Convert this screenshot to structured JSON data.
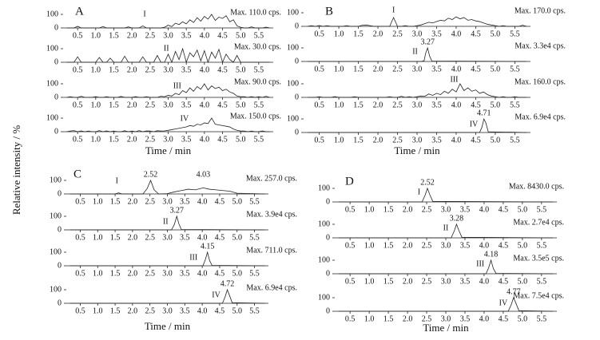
{
  "figure": {
    "ylabel": "Relative intensity / %"
  },
  "chart_data": [
    {
      "type": "line",
      "label": "A",
      "xlabel": "Time / min",
      "xlim": [
        0.1,
        5.9
      ],
      "ylim": [
        0,
        120
      ],
      "yticks": [
        0,
        100
      ],
      "xticks": [
        0.5,
        {
          "value": 1,
          "label": "1.0"
        },
        1.5,
        {
          "value": 2,
          "label": "2.0"
        },
        2.5,
        {
          "value": 3,
          "label": "3.0"
        },
        3.5,
        {
          "value": 4,
          "label": "4.0"
        },
        4.5,
        {
          "value": 5,
          "label": "5.0"
        },
        5.5
      ],
      "x": [
        0.2,
        0.3,
        0.4,
        0.5,
        0.6,
        0.7,
        0.8,
        0.9,
        1.0,
        1.1,
        1.2,
        1.3,
        1.4,
        1.5,
        1.6,
        1.7,
        1.8,
        1.9,
        2.0,
        2.1,
        2.2,
        2.3,
        2.4,
        2.5,
        2.6,
        2.7,
        2.8,
        2.9,
        3.0,
        3.1,
        3.2,
        3.3,
        3.4,
        3.5,
        3.6,
        3.7,
        3.8,
        3.9,
        4.0,
        4.1,
        4.2,
        4.3,
        4.4,
        4.5,
        4.6,
        4.7,
        4.8,
        4.9,
        5.0,
        5.1,
        5.2,
        5.3,
        5.4,
        5.5,
        5.6,
        5.7,
        5.8
      ],
      "series": [
        {
          "name": "I",
          "max_label": "Max. 110.0 cps.",
          "values": [
            0,
            0,
            0,
            12,
            0,
            0,
            0,
            0,
            0,
            0,
            10,
            0,
            0,
            0,
            0,
            0,
            0,
            8,
            0,
            0,
            0,
            15,
            0,
            0,
            0,
            0,
            0,
            5,
            20,
            10,
            35,
            25,
            45,
            30,
            60,
            40,
            75,
            50,
            85,
            65,
            100,
            55,
            80,
            70,
            90,
            45,
            60,
            15,
            5,
            0,
            0,
            8,
            0,
            0,
            0,
            6,
            0
          ]
        },
        {
          "name": "II",
          "max_label": "Max. 30.0 cps.",
          "values": [
            0,
            0,
            0,
            40,
            0,
            0,
            0,
            0,
            0,
            35,
            0,
            0,
            30,
            0,
            0,
            0,
            45,
            0,
            0,
            0,
            0,
            40,
            0,
            0,
            0,
            50,
            0,
            0,
            60,
            0,
            80,
            20,
            100,
            0,
            70,
            40,
            90,
            10,
            85,
            0,
            75,
            30,
            95,
            0,
            60,
            20,
            0,
            50,
            0,
            0,
            0,
            0,
            0,
            0,
            0,
            0,
            0
          ]
        },
        {
          "name": "III",
          "max_label": "Max. 90.0 cps.",
          "values": [
            0,
            5,
            0,
            0,
            8,
            0,
            0,
            0,
            6,
            0,
            0,
            5,
            0,
            0,
            0,
            7,
            0,
            0,
            0,
            6,
            0,
            0,
            5,
            0,
            0,
            0,
            8,
            5,
            15,
            10,
            30,
            20,
            50,
            35,
            70,
            45,
            80,
            60,
            100,
            55,
            85,
            65,
            75,
            50,
            60,
            40,
            30,
            10,
            5,
            5,
            0,
            6,
            0,
            5,
            0,
            8,
            0
          ]
        },
        {
          "name": "IV",
          "max_label": "Max. 150.0 cps.",
          "values": [
            0,
            5,
            8,
            0,
            6,
            0,
            5,
            0,
            0,
            8,
            0,
            6,
            0,
            5,
            0,
            0,
            7,
            0,
            5,
            0,
            8,
            0,
            6,
            5,
            0,
            7,
            5,
            6,
            10,
            15,
            20,
            25,
            30,
            35,
            45,
            40,
            55,
            50,
            65,
            60,
            100,
            55,
            50,
            45,
            40,
            35,
            20,
            10,
            5,
            5,
            0,
            5,
            0,
            0,
            6,
            0,
            0
          ]
        }
      ]
    },
    {
      "type": "line",
      "label": "B",
      "xlabel": "Time / min",
      "xlim": [
        0.1,
        5.9
      ],
      "ylim": [
        0,
        120
      ],
      "yticks": [
        0,
        100
      ],
      "xticks": [
        0.5,
        {
          "value": 1,
          "label": "1.0"
        },
        1.5,
        {
          "value": 2,
          "label": "2.0"
        },
        2.5,
        {
          "value": 3,
          "label": "3.0"
        },
        3.5,
        {
          "value": 4,
          "label": "4.0"
        },
        4.5,
        {
          "value": 5,
          "label": "5.0"
        },
        5.5
      ],
      "x": [
        0.2,
        0.3,
        0.4,
        0.5,
        0.6,
        0.7,
        0.8,
        0.9,
        1.0,
        1.1,
        1.2,
        1.3,
        1.4,
        1.5,
        1.6,
        1.7,
        1.8,
        1.9,
        2.0,
        2.1,
        2.2,
        2.3,
        2.4,
        2.5,
        2.6,
        2.7,
        2.8,
        2.9,
        3.0,
        3.1,
        3.2,
        3.3,
        3.4,
        3.5,
        3.6,
        3.7,
        3.8,
        3.9,
        4.0,
        4.1,
        4.2,
        4.3,
        4.4,
        4.5,
        4.6,
        4.7,
        4.8,
        4.9,
        5.0,
        5.1,
        5.2,
        5.3,
        5.4,
        5.5,
        5.6,
        5.7,
        5.8
      ],
      "series": [
        {
          "name": "I",
          "max_label": "Max. 170.0 cps.",
          "values": [
            0,
            5,
            0,
            6,
            0,
            5,
            0,
            0,
            0,
            0,
            5,
            0,
            0,
            0,
            8,
            10,
            5,
            0,
            0,
            0,
            0,
            0,
            65,
            0,
            0,
            5,
            0,
            0,
            5,
            10,
            20,
            30,
            25,
            35,
            45,
            40,
            60,
            50,
            70,
            55,
            65,
            45,
            50,
            40,
            35,
            25,
            15,
            10,
            5,
            0,
            5,
            0,
            0,
            0,
            0,
            8,
            0
          ]
        },
        {
          "name": "II",
          "max_label": "Max. 3.3e4 cps.",
          "peaks": [
            3.27
          ],
          "x": [
            0.2,
            3.1,
            3.18,
            3.22,
            3.27,
            3.32,
            3.38,
            5.8
          ],
          "values": [
            0,
            0,
            5,
            60,
            100,
            40,
            3,
            0
          ]
        },
        {
          "name": "III",
          "max_label": "Max. 160.0 cps.",
          "values": [
            0,
            0,
            0,
            5,
            0,
            0,
            0,
            6,
            0,
            0,
            0,
            0,
            5,
            0,
            0,
            0,
            0,
            0,
            0,
            0,
            0,
            5,
            0,
            0,
            8,
            0,
            5,
            0,
            5,
            10,
            8,
            25,
            15,
            30,
            20,
            45,
            30,
            60,
            40,
            100,
            50,
            70,
            45,
            55,
            30,
            40,
            20,
            10,
            5,
            0,
            5,
            0,
            0,
            5,
            0,
            0,
            0
          ]
        },
        {
          "name": "IV",
          "max_label": "Max. 6.9e4 cps.",
          "peaks": [
            4.71
          ],
          "x": [
            0.2,
            4.6,
            4.66,
            4.71,
            4.76,
            4.82,
            5.8
          ],
          "values": [
            0,
            0,
            40,
            100,
            70,
            5,
            0
          ]
        }
      ]
    },
    {
      "type": "line",
      "label": "C",
      "xlabel": "Time / min",
      "xlim": [
        0.1,
        5.9
      ],
      "ylim": [
        0,
        120
      ],
      "yticks": [
        0,
        100
      ],
      "xticks": [
        0.5,
        {
          "value": 1,
          "label": "1.0"
        },
        1.5,
        {
          "value": 2,
          "label": "2.0"
        },
        2.5,
        {
          "value": 3,
          "label": "3.0"
        },
        3.5,
        {
          "value": 4,
          "label": "4.0"
        },
        4.5,
        {
          "value": 5,
          "label": "5.0"
        },
        5.5
      ],
      "series": [
        {
          "name": "I",
          "max_label": "Max. 257.0 cps.",
          "peaks": [
            2.52,
            4.03
          ],
          "x": [
            0.2,
            1.5,
            1.6,
            1.7,
            2.3,
            2.42,
            2.52,
            2.62,
            2.75,
            3.0,
            3.2,
            3.4,
            3.6,
            3.8,
            4.03,
            4.2,
            4.4,
            4.6,
            4.8,
            5.0,
            5.8
          ],
          "values": [
            0,
            0,
            8,
            0,
            0,
            40,
            100,
            30,
            0,
            2,
            15,
            25,
            35,
            30,
            45,
            35,
            30,
            25,
            20,
            5,
            0
          ]
        },
        {
          "name": "II",
          "max_label": "Max. 3.9e4 cps.",
          "peaks": [
            3.27
          ],
          "x": [
            0.2,
            3.12,
            3.2,
            3.27,
            3.33,
            3.4,
            5.8
          ],
          "values": [
            0,
            0,
            40,
            100,
            45,
            3,
            0
          ]
        },
        {
          "name": "III",
          "max_label": "Max. 711.0 cps.",
          "peaks": [
            4.15
          ],
          "x": [
            0.2,
            4.02,
            4.09,
            4.15,
            4.21,
            4.28,
            5.8
          ],
          "values": [
            0,
            0,
            45,
            100,
            40,
            3,
            0
          ]
        },
        {
          "name": "IV",
          "max_label": "Max. 6.9e4 cps.",
          "peaks": [
            4.72
          ],
          "x": [
            0.2,
            4.58,
            4.66,
            4.72,
            4.78,
            4.86,
            5.8
          ],
          "values": [
            0,
            0,
            50,
            100,
            60,
            4,
            0
          ]
        }
      ]
    },
    {
      "type": "line",
      "label": "D",
      "xlabel": "Time / min",
      "xlim": [
        0.1,
        5.9
      ],
      "ylim": [
        0,
        120
      ],
      "yticks": [
        0,
        100
      ],
      "xticks": [
        0.5,
        {
          "value": 1,
          "label": "1.0"
        },
        1.5,
        {
          "value": 2,
          "label": "2.0"
        },
        2.5,
        {
          "value": 3,
          "label": "3.0"
        },
        3.5,
        {
          "value": 4,
          "label": "4.0"
        },
        4.5,
        {
          "value": 5,
          "label": "5.0"
        },
        5.5
      ],
      "series": [
        {
          "name": "I",
          "max_label": "Max. 8430.0 cps.",
          "peaks": [
            2.52
          ],
          "x": [
            0.2,
            2.38,
            2.46,
            2.52,
            2.58,
            2.66,
            5.8
          ],
          "values": [
            0,
            0,
            50,
            100,
            55,
            4,
            0
          ]
        },
        {
          "name": "II",
          "max_label": "Max. 2.7e4 cps.",
          "peaks": [
            3.28
          ],
          "x": [
            0.2,
            3.14,
            3.22,
            3.28,
            3.34,
            3.42,
            5.8
          ],
          "values": [
            0,
            0,
            50,
            100,
            55,
            4,
            0
          ]
        },
        {
          "name": "III",
          "max_label": "Max. 3.5e5 cps.",
          "peaks": [
            4.18
          ],
          "x": [
            0.2,
            4.05,
            4.12,
            4.18,
            4.24,
            4.31,
            5.8
          ],
          "values": [
            0,
            0,
            45,
            100,
            40,
            3,
            0
          ]
        },
        {
          "name": "IV",
          "max_label": "Max. 7.5e4 cps.",
          "peaks": [
            4.77
          ],
          "x": [
            0.2,
            4.63,
            4.71,
            4.77,
            4.83,
            4.91,
            5.8
          ],
          "values": [
            0,
            0,
            50,
            100,
            60,
            4,
            0
          ]
        }
      ]
    }
  ]
}
